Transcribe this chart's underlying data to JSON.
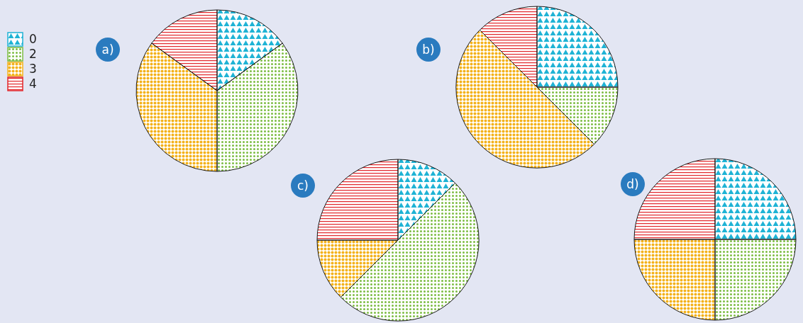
{
  "chart_data": [
    {
      "type": "pie",
      "title": "a)",
      "categories": [
        "0",
        "2",
        "3",
        "4"
      ],
      "values": [
        15,
        35,
        35,
        15
      ],
      "colors": [
        "#1fb3d5",
        "#7cbc42",
        "#f4b21c",
        "#e2262b"
      ],
      "legend": "left"
    },
    {
      "type": "pie",
      "title": "b)",
      "categories": [
        null,
        null,
        null,
        null
      ],
      "values": [
        25,
        12.5,
        50,
        12.5
      ],
      "colors": [
        "#1fb3d5",
        "#7cbc42",
        "#f4b21c",
        "#e2262b"
      ]
    },
    {
      "type": "pie",
      "title": "c)",
      "categories": [
        null,
        null,
        null,
        null
      ],
      "values": [
        12.5,
        50,
        12.5,
        25
      ],
      "colors": [
        "#1fb3d5",
        "#7cbc42",
        "#f4b21c",
        "#e2262b"
      ]
    },
    {
      "type": "pie",
      "title": "d)",
      "categories": [
        null,
        null,
        null,
        null
      ],
      "values": [
        25,
        25,
        25,
        25
      ],
      "colors": [
        "#1fb3d5",
        "#7cbc42",
        "#f4b21c",
        "#e2262b"
      ]
    }
  ]
}
